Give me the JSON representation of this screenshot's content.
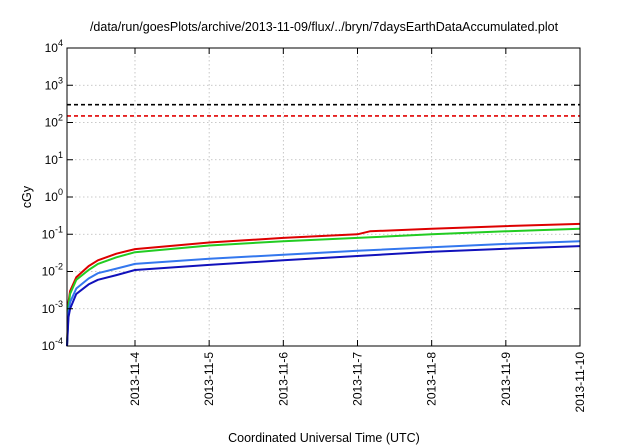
{
  "chart_data": {
    "type": "line",
    "title": "/data/run/goesPlots/archive/2013-11-09/flux/../bryn/7daysEarthDataAccumulated.plot",
    "xlabel": "Coordinated Universal Time (UTC)",
    "ylabel": "cGy",
    "y_scale": "log",
    "ylim_exponents": [
      -4,
      4
    ],
    "y_tick_labels": [
      {
        "exp": -4,
        "base": "10",
        "sup": "-4"
      },
      {
        "exp": -3,
        "base": "10",
        "sup": "-3"
      },
      {
        "exp": -2,
        "base": "10",
        "sup": "-2"
      },
      {
        "exp": -1,
        "base": "10",
        "sup": "-1"
      },
      {
        "exp": 0,
        "base": "10",
        "sup": "0"
      },
      {
        "exp": 1,
        "base": "10",
        "sup": "1"
      },
      {
        "exp": 2,
        "base": "10",
        "sup": "2"
      },
      {
        "exp": 3,
        "base": "10",
        "sup": "3"
      },
      {
        "exp": 4,
        "base": "10",
        "sup": "4"
      }
    ],
    "x_range_days": [
      "2013-11-03T02:00",
      "2013-11-10T00:00"
    ],
    "x_tick_labels": [
      "2013-11-4",
      "2013-11-5",
      "2013-11-6",
      "2013-11-7",
      "2013-11-8",
      "2013-11-9",
      "2013-11-10"
    ],
    "x_ticks": [
      "2013-11-04",
      "2013-11-05",
      "2013-11-06",
      "2013-11-07",
      "2013-11-08",
      "2013-11-09",
      "2013-11-10"
    ],
    "grid": true,
    "thresholds": [
      {
        "value": 300,
        "color": "#000000"
      },
      {
        "value": 150,
        "color": "#e00000"
      }
    ],
    "series": [
      {
        "color": "#dd0000",
        "x": [
          "2013-11-03T02:00",
          "2013-11-03T02:30",
          "2013-11-03T03:00",
          "2013-11-03T05:00",
          "2013-11-03T09:00",
          "2013-11-03T12:00",
          "2013-11-03T18:00",
          "2013-11-04T00:00",
          "2013-11-05T00:00",
          "2013-11-06T00:00",
          "2013-11-07T00:00",
          "2013-11-07T04:00",
          "2013-11-08T00:00",
          "2013-11-09T00:00",
          "2013-11-10T00:00"
        ],
        "y": [
          0.0001,
          0.0015,
          0.003,
          0.007,
          0.014,
          0.02,
          0.03,
          0.04,
          0.06,
          0.08,
          0.1,
          0.12,
          0.14,
          0.165,
          0.19
        ]
      },
      {
        "color": "#22cc22",
        "x": [
          "2013-11-03T02:00",
          "2013-11-03T02:30",
          "2013-11-03T03:00",
          "2013-11-03T05:00",
          "2013-11-03T09:00",
          "2013-11-03T12:00",
          "2013-11-03T18:00",
          "2013-11-04T00:00",
          "2013-11-05T00:00",
          "2013-11-06T00:00",
          "2013-11-07T00:00",
          "2013-11-08T00:00",
          "2013-11-09T00:00",
          "2013-11-10T00:00"
        ],
        "y": [
          0.0001,
          0.0012,
          0.0025,
          0.006,
          0.011,
          0.016,
          0.024,
          0.033,
          0.05,
          0.065,
          0.08,
          0.1,
          0.12,
          0.14
        ]
      },
      {
        "color": "#3377ee",
        "x": [
          "2013-11-03T02:00",
          "2013-11-03T02:30",
          "2013-11-03T03:00",
          "2013-11-03T05:00",
          "2013-11-03T09:00",
          "2013-11-03T12:00",
          "2013-11-03T18:00",
          "2013-11-04T00:00",
          "2013-11-05T00:00",
          "2013-11-06T00:00",
          "2013-11-07T00:00",
          "2013-11-08T00:00",
          "2013-11-09T00:00",
          "2013-11-10T00:00"
        ],
        "y": [
          0.0001,
          0.0008,
          0.0015,
          0.0035,
          0.0065,
          0.009,
          0.012,
          0.016,
          0.022,
          0.028,
          0.036,
          0.045,
          0.055,
          0.065
        ]
      },
      {
        "color": "#1111bb",
        "x": [
          "2013-11-03T02:00",
          "2013-11-03T02:30",
          "2013-11-03T03:00",
          "2013-11-03T05:00",
          "2013-11-03T09:00",
          "2013-11-03T12:00",
          "2013-11-03T18:00",
          "2013-11-04T00:00",
          "2013-11-05T00:00",
          "2013-11-06T00:00",
          "2013-11-07T00:00",
          "2013-11-08T00:00",
          "2013-11-09T00:00",
          "2013-11-10T00:00"
        ],
        "y": [
          0.0001,
          0.0006,
          0.001,
          0.0025,
          0.0045,
          0.006,
          0.008,
          0.011,
          0.015,
          0.02,
          0.026,
          0.034,
          0.041,
          0.048
        ]
      }
    ]
  }
}
